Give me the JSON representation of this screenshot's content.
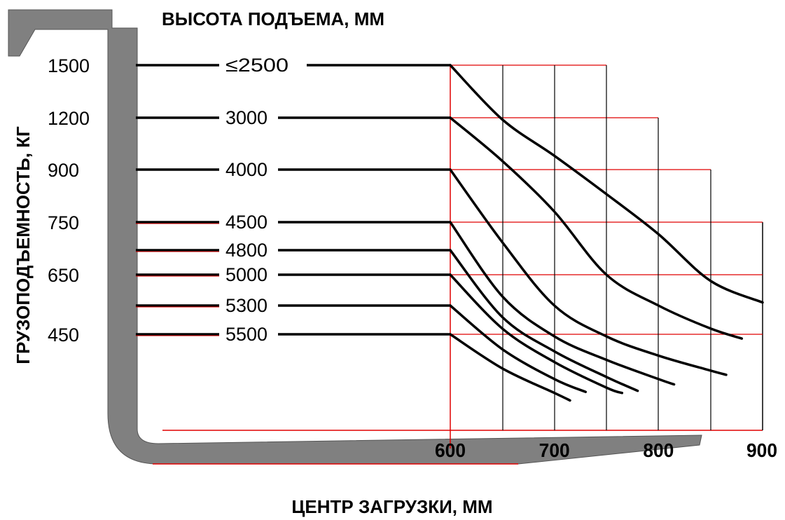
{
  "chart_data": {
    "type": "line",
    "title": "ВЫСОТА ПОДЪЕМА, ММ",
    "xlabel": "ЦЕНТР ЗАГРУЗКИ, ММ",
    "ylabel": "ГРУЗОПОДЪЕМНОСТЬ, КГ",
    "x_ticks": [
      "600",
      "700",
      "800",
      "900"
    ],
    "y_ticks": [
      "1500",
      "1200",
      "900",
      "750",
      "650",
      "450"
    ],
    "xlim": [
      600,
      900
    ],
    "series": [
      {
        "name": "≤2500",
        "capacity": "1500",
        "x": [
          600,
          650,
          700,
          750,
          800,
          850,
          900
        ],
        "y": [
          1500,
          1190,
          980,
          830,
          720,
          630,
          560
        ]
      },
      {
        "name": "3000",
        "capacity": "1200",
        "x": [
          600,
          650,
          700,
          750,
          800,
          850,
          880
        ],
        "y": [
          1200,
          950,
          780,
          650,
          550,
          470,
          430
        ]
      },
      {
        "name": "4000",
        "capacity": "900",
        "x": [
          600,
          650,
          700,
          750,
          800,
          850,
          865
        ],
        "y": [
          900,
          700,
          550,
          440,
          350,
          280,
          260
        ]
      },
      {
        "name": "4500",
        "capacity": "750",
        "x": [
          600,
          650,
          700,
          750,
          800,
          815
        ],
        "y": [
          750,
          580,
          440,
          330,
          240,
          215
        ]
      },
      {
        "name": "4800",
        "capacity": "680",
        "x": [
          600,
          650,
          700,
          750,
          780
        ],
        "y": [
          680,
          510,
          370,
          250,
          185
        ]
      },
      {
        "name": "5000",
        "capacity": "650",
        "x": [
          600,
          650,
          700,
          750,
          765
        ],
        "y": [
          650,
          470,
          320,
          200,
          175
        ]
      },
      {
        "name": "5300",
        "capacity": "550",
        "x": [
          600,
          650,
          700,
          730
        ],
        "y": [
          550,
          380,
          240,
          180
        ]
      },
      {
        "name": "5500",
        "capacity": "450",
        "x": [
          600,
          650,
          700,
          715
        ],
        "y": [
          450,
          290,
          175,
          140
        ]
      }
    ],
    "grid": true,
    "colors": {
      "line": "#000000",
      "grid": "#e00000",
      "fork": "#808080"
    }
  }
}
